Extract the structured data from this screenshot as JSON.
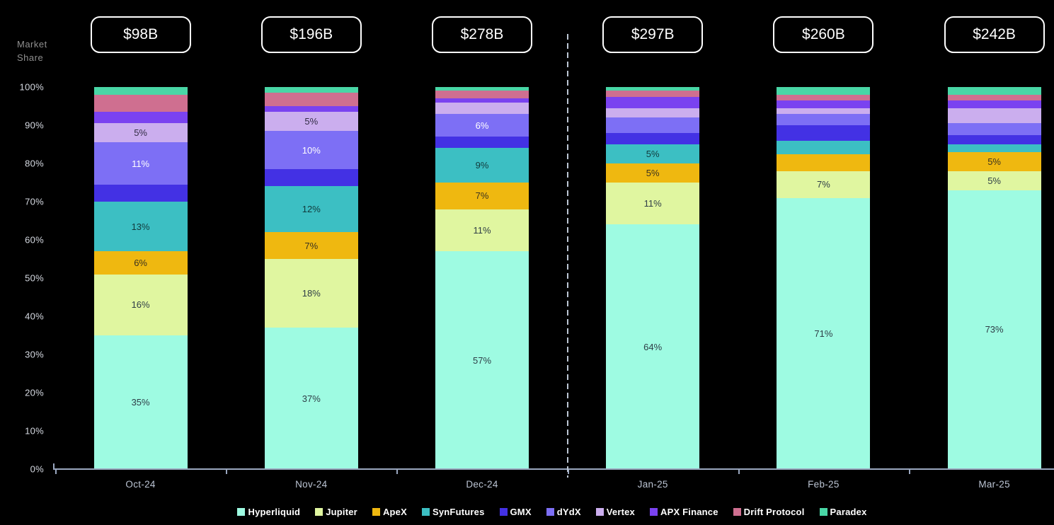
{
  "axis": {
    "ylabel": "Market Share"
  },
  "chart_data": {
    "type": "bar",
    "stacked": true,
    "unit": "percent-of-total",
    "title": "",
    "xlabel": "",
    "ylabel": "Market Share",
    "ylim": [
      0,
      100
    ],
    "grid": false,
    "legend_position": "bottom",
    "background": "#000000",
    "categories": [
      "Oct-24",
      "Nov-24",
      "Dec-24",
      "Jan-25",
      "Feb-25",
      "Mar-25"
    ],
    "totals": [
      "$98B",
      "$196B",
      "$278B",
      "$297B",
      "$260B",
      "$242B"
    ],
    "yticks": [
      "0%",
      "10%",
      "20%",
      "30%",
      "40%",
      "50%",
      "60%",
      "70%",
      "80%",
      "90%",
      "100%"
    ],
    "divider_between": [
      "Dec-24",
      "Jan-25"
    ],
    "series": [
      {
        "name": "Hyperliquid",
        "color": "#9efbe2",
        "label_color": "#2e3d46",
        "values": [
          35,
          37,
          57,
          64,
          71,
          73
        ],
        "labels": [
          "35%",
          "37%",
          "57%",
          "64%",
          "71%",
          "73%"
        ]
      },
      {
        "name": "Jupiter",
        "color": "#e0f6a0",
        "label_color": "#2e3d46",
        "values": [
          16,
          18,
          11,
          11,
          7,
          5
        ],
        "labels": [
          "16%",
          "18%",
          "11%",
          "11%",
          "7%",
          "5%"
        ]
      },
      {
        "name": "ApeX",
        "color": "#efb810",
        "label_color": "#3a3220",
        "values": [
          6,
          7,
          7,
          5,
          4.5,
          5
        ],
        "labels": [
          "6%",
          "7%",
          "7%",
          "5%",
          "",
          "5%"
        ]
      },
      {
        "name": "SynFutures",
        "color": "#3cbfc3",
        "label_color": "#123a3c",
        "values": [
          13,
          12,
          9,
          5,
          3.5,
          2
        ],
        "labels": [
          "13%",
          "12%",
          "9%",
          "5%",
          "",
          ""
        ]
      },
      {
        "name": "GMX",
        "color": "#4331e4",
        "label_color": "#ffffff",
        "values": [
          4.5,
          4.5,
          3,
          3,
          4,
          2.5
        ],
        "labels": [
          "",
          "",
          "",
          "",
          "",
          ""
        ]
      },
      {
        "name": "dYdX",
        "color": "#7d6ff5",
        "label_color": "#ffffff",
        "values": [
          11,
          10,
          6,
          4,
          3,
          3
        ],
        "labels": [
          "11%",
          "10%",
          "6%",
          "",
          "",
          ""
        ]
      },
      {
        "name": "Vertex",
        "color": "#cbaeee",
        "label_color": "#322c44",
        "values": [
          5,
          5,
          3,
          2.5,
          1.5,
          4
        ],
        "labels": [
          "5%",
          "5%",
          "",
          "",
          "",
          ""
        ]
      },
      {
        "name": "APX Finance",
        "color": "#7a42f0",
        "label_color": "#ffffff",
        "values": [
          3,
          1.5,
          1,
          3,
          2,
          2
        ],
        "labels": [
          "",
          "",
          "",
          "",
          "",
          ""
        ]
      },
      {
        "name": "Drift Protocol",
        "color": "#cf6f90",
        "label_color": "#3a1f2a",
        "values": [
          4.5,
          3.5,
          2,
          1.5,
          1.5,
          1.5
        ],
        "labels": [
          "",
          "",
          "",
          "",
          "",
          ""
        ]
      },
      {
        "name": "Paradex",
        "color": "#49d6a6",
        "label_color": "#123a2c",
        "values": [
          2,
          1.5,
          1,
          1,
          2,
          2
        ],
        "labels": [
          "",
          "",
          "",
          "",
          "",
          ""
        ]
      }
    ]
  }
}
